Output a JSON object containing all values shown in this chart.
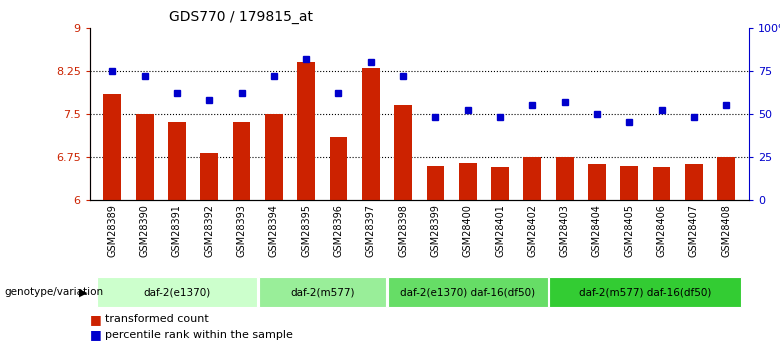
{
  "title": "GDS770 / 179815_at",
  "samples": [
    "GSM28389",
    "GSM28390",
    "GSM28391",
    "GSM28392",
    "GSM28393",
    "GSM28394",
    "GSM28395",
    "GSM28396",
    "GSM28397",
    "GSM28398",
    "GSM28399",
    "GSM28400",
    "GSM28401",
    "GSM28402",
    "GSM28403",
    "GSM28404",
    "GSM28405",
    "GSM28406",
    "GSM28407",
    "GSM28408"
  ],
  "bar_values": [
    7.85,
    7.5,
    7.35,
    6.82,
    7.35,
    7.5,
    8.4,
    7.1,
    8.3,
    7.65,
    6.6,
    6.65,
    6.58,
    6.75,
    6.75,
    6.62,
    6.6,
    6.58,
    6.62,
    6.75
  ],
  "dot_values": [
    75,
    72,
    62,
    58,
    62,
    72,
    82,
    62,
    80,
    72,
    48,
    52,
    48,
    55,
    57,
    50,
    45,
    52,
    48,
    55
  ],
  "ymin": 6.0,
  "ymax": 9.0,
  "yticks": [
    6.0,
    6.75,
    7.5,
    8.25,
    9.0
  ],
  "ytick_labels": [
    "6",
    "6.75",
    "7.5",
    "8.25",
    "9"
  ],
  "y2min": 0,
  "y2max": 100,
  "y2ticks": [
    0,
    25,
    50,
    75,
    100
  ],
  "y2tick_labels": [
    "0",
    "25",
    "50",
    "75",
    "100%"
  ],
  "hlines": [
    6.75,
    7.5,
    8.25
  ],
  "bar_color": "#cc2200",
  "dot_color": "#0000cc",
  "groups": [
    {
      "label": "daf-2(e1370)",
      "start": 0,
      "end": 5,
      "color": "#ccffcc"
    },
    {
      "label": "daf-2(m577)",
      "start": 5,
      "end": 9,
      "color": "#99ee99"
    },
    {
      "label": "daf-2(e1370) daf-16(df50)",
      "start": 9,
      "end": 14,
      "color": "#66dd66"
    },
    {
      "label": "daf-2(m577) daf-16(df50)",
      "start": 14,
      "end": 20,
      "color": "#33cc33"
    }
  ],
  "legend_red_label": "transformed count",
  "legend_blue_label": "percentile rank within the sample",
  "genotype_label": "genotype/variation"
}
